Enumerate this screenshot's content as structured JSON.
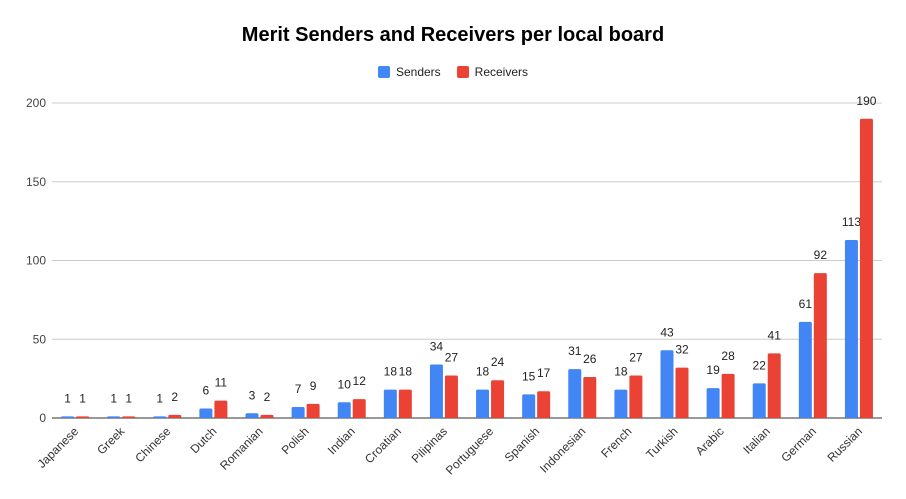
{
  "chart_data": {
    "type": "bar",
    "title": "Merit Senders and Receivers per local board",
    "xlabel": "",
    "ylabel": "",
    "ylim": [
      0,
      200
    ],
    "yticks": [
      0,
      50,
      100,
      150,
      200
    ],
    "grid": true,
    "legend_position": "top-center",
    "categories": [
      "Japanese",
      "Greek",
      "Chinese",
      "Dutch",
      "Romanian",
      "Polish",
      "Indian",
      "Croatian",
      "Pilipinas",
      "Portuguese",
      "Spanish",
      "Indonesian",
      "French",
      "Turkish",
      "Arabic",
      "Italian",
      "German",
      "Russian"
    ],
    "series": [
      {
        "name": "Senders",
        "color": "#4285f4",
        "values": [
          1,
          1,
          1,
          6,
          3,
          7,
          10,
          18,
          34,
          18,
          15,
          31,
          18,
          43,
          19,
          22,
          61,
          113
        ]
      },
      {
        "name": "Receivers",
        "color": "#ea4335",
        "values": [
          1,
          1,
          2,
          11,
          2,
          9,
          12,
          18,
          27,
          24,
          17,
          26,
          27,
          32,
          28,
          41,
          92,
          190
        ]
      }
    ]
  }
}
